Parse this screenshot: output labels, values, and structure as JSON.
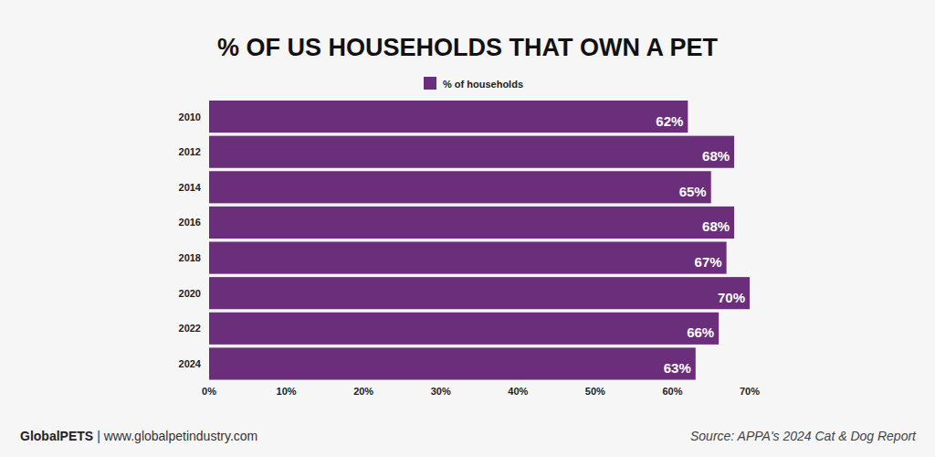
{
  "chart_data": {
    "type": "bar",
    "title": "% OF US HOUSEHOLDS THAT OWN A PET",
    "orientation": "horizontal",
    "categories": [
      "2010",
      "2012",
      "2014",
      "2016",
      "2018",
      "2020",
      "2022",
      "2024"
    ],
    "series": [
      {
        "name": "% of households",
        "color": "#6a2e7b",
        "values": [
          62,
          68,
          65,
          68,
          67,
          70,
          66,
          63
        ],
        "value_labels": [
          "62%",
          "68%",
          "65%",
          "68%",
          "67%",
          "70%",
          "66%",
          "63%"
        ]
      }
    ],
    "xlim": [
      0,
      70
    ],
    "xticks": [
      {
        "value": 0,
        "label": "0%"
      },
      {
        "value": 10,
        "label": "10%"
      },
      {
        "value": 20,
        "label": "20%"
      },
      {
        "value": 30,
        "label": "30%"
      },
      {
        "value": 40,
        "label": "40%"
      },
      {
        "value": 50,
        "label": "50%"
      },
      {
        "value": 60,
        "label": "60%"
      },
      {
        "value": 70,
        "label": "70%"
      }
    ],
    "grid": false,
    "legend": "top",
    "data_labels": true,
    "annotations": [
      "GlobalPETS",
      "| www.globalpetindustry.com",
      "Source: APPA's 2024 Cat & Dog Report"
    ]
  }
}
